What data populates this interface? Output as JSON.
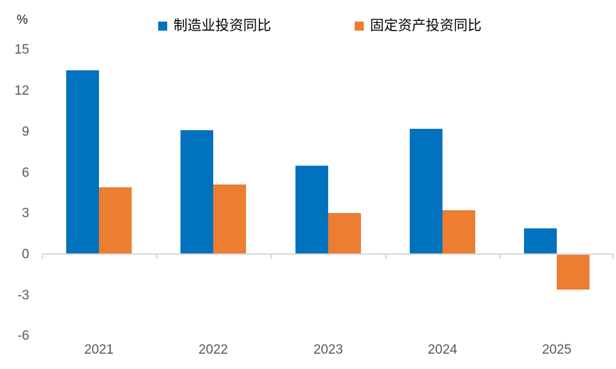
{
  "chart_data": {
    "type": "bar",
    "title": "",
    "xlabel": "",
    "ylabel": "%",
    "categories": [
      "2021",
      "2022",
      "2023",
      "2024",
      "2025"
    ],
    "series": [
      {
        "name": "制造业投资同比",
        "color": "#0072BE",
        "values": [
          13.5,
          9.1,
          6.5,
          9.2,
          1.9
        ]
      },
      {
        "name": "固定资产投资同比",
        "color": "#ED7D31",
        "values": [
          4.9,
          5.1,
          3.0,
          3.2,
          -2.6
        ]
      }
    ],
    "ylim": [
      -6,
      15
    ],
    "yticks": [
      15,
      12,
      9,
      6,
      3,
      0,
      -3,
      -6
    ],
    "grid": false,
    "legend_position": "top"
  },
  "colors": {
    "axis_line": "#D9D9D9",
    "tick_label": "#595959",
    "legend_text": "#000000",
    "background": "#FFFFFF"
  }
}
